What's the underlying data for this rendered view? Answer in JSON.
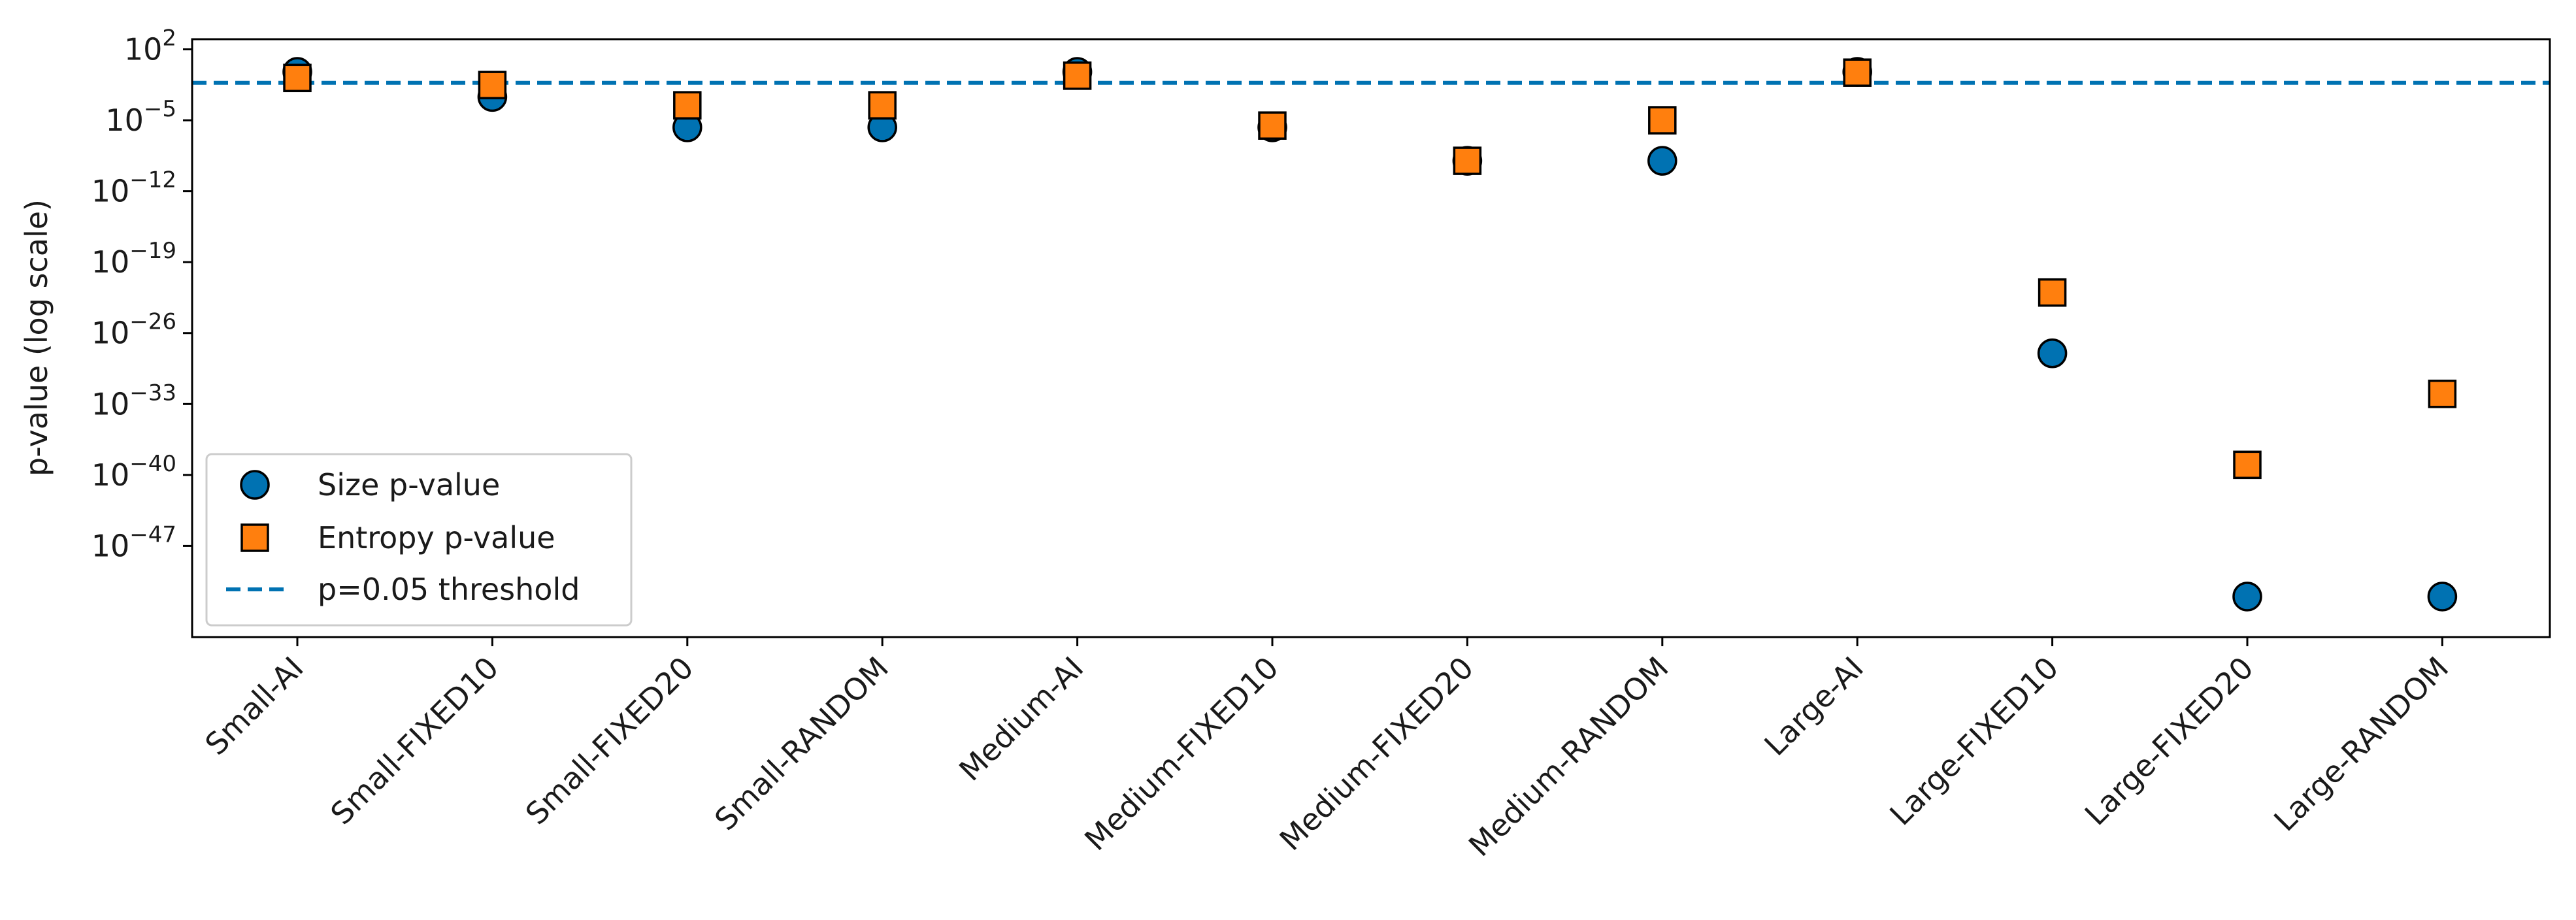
{
  "chart_data": {
    "type": "scatter",
    "title": "",
    "xlabel": "",
    "ylabel": "p-value (log scale)",
    "y_scale": "log",
    "ylim": [
      1e-56,
      1000.0
    ],
    "yticks": [
      {
        "exp": "2",
        "value": 100.0
      },
      {
        "exp": "−5",
        "value": 1e-05
      },
      {
        "exp": "−12",
        "value": 1e-12
      },
      {
        "exp": "−19",
        "value": 1e-19
      },
      {
        "exp": "−26",
        "value": 1e-26
      },
      {
        "exp": "−33",
        "value": 1e-33
      },
      {
        "exp": "−40",
        "value": 1e-40
      },
      {
        "exp": "−47",
        "value": 1e-47
      }
    ],
    "tick_base": "10",
    "categories": [
      "Small-AI",
      "Small-FIXED10",
      "Small-FIXED20",
      "Small-RANDOM",
      "Medium-AI",
      "Medium-FIXED10",
      "Medium-FIXED20",
      "Medium-RANDOM",
      "Large-AI",
      "Large-FIXED10",
      "Large-FIXED20",
      "Large-RANDOM"
    ],
    "series": [
      {
        "name": "Size p-value",
        "marker": "circle",
        "color": "#0072B2",
        "values": [
          0.6,
          0.002,
          2e-06,
          2e-06,
          0.6,
          2e-06,
          1e-09,
          1e-09,
          0.6,
          1e-28,
          1e-52,
          1e-52
        ]
      },
      {
        "name": "Entropy p-value",
        "marker": "square",
        "color": "#FF7F0E",
        "values": [
          0.15,
          0.03,
          0.0003,
          0.0003,
          0.25,
          3e-06,
          1e-09,
          1e-05,
          0.5,
          1e-22,
          1e-39,
          1e-32
        ]
      }
    ],
    "reference_lines": [
      {
        "name": "p=0.05 threshold",
        "value": 0.05,
        "style": "dashed",
        "color": "#0072B2"
      }
    ],
    "legend": {
      "position": "lower-left"
    },
    "grid": false
  }
}
